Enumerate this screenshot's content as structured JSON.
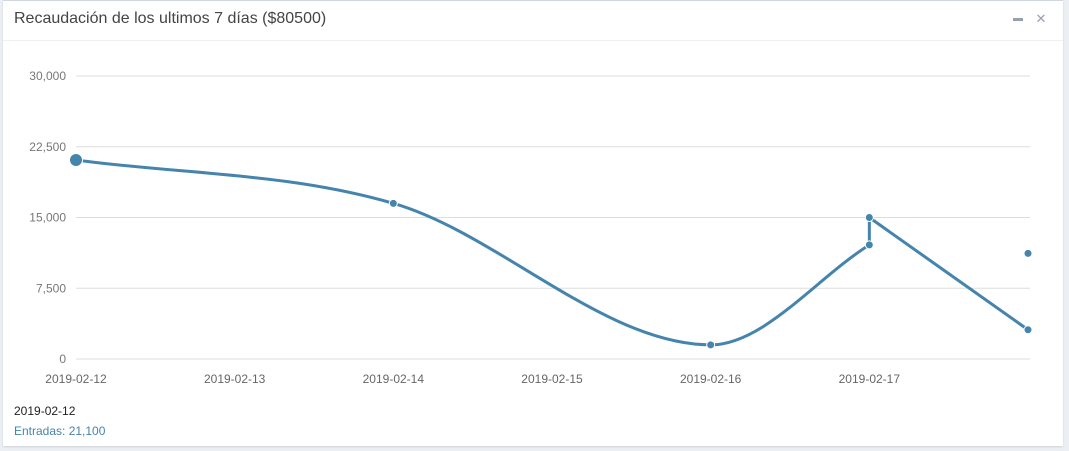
{
  "header": {
    "title": "Recaudación de los ultimos 7 días ($80500)",
    "minimize_icon": "minus-icon",
    "close_icon": "times-icon"
  },
  "colors": {
    "line": "#4584ac",
    "grid": "#dddddd"
  },
  "tooltip": {
    "date": "2019-02-12",
    "series_label": "Entradas",
    "value_text": "21,100",
    "separator": ": "
  },
  "chart_data": {
    "type": "line",
    "grid": true,
    "ylim": [
      0,
      30000
    ],
    "yticks": [
      0,
      7500,
      15000,
      22500,
      30000
    ],
    "ytick_labels": [
      "0",
      "7,500",
      "15,000",
      "22,500",
      "30,000"
    ],
    "xlim": [
      "2019-02-12",
      "2019-02-18"
    ],
    "xtick_labels": [
      "2019-02-12",
      "2019-02-13",
      "2019-02-14",
      "2019-02-15",
      "2019-02-16",
      "2019-02-17"
    ],
    "series": [
      {
        "name": "Entradas",
        "points": [
          {
            "x": "2019-02-12",
            "y": 21100
          },
          {
            "x": "2019-02-14",
            "y": 16500
          },
          {
            "x": "2019-02-16",
            "y": 1500
          },
          {
            "x": "2019-02-17",
            "y": 12100
          },
          {
            "x": "2019-02-17",
            "y": 15000
          },
          {
            "x": "2019-02-18",
            "y": 3100
          }
        ],
        "isolated_points": [
          {
            "x": "2019-02-18",
            "y": 11200
          }
        ],
        "highlighted_index": 0
      }
    ]
  }
}
